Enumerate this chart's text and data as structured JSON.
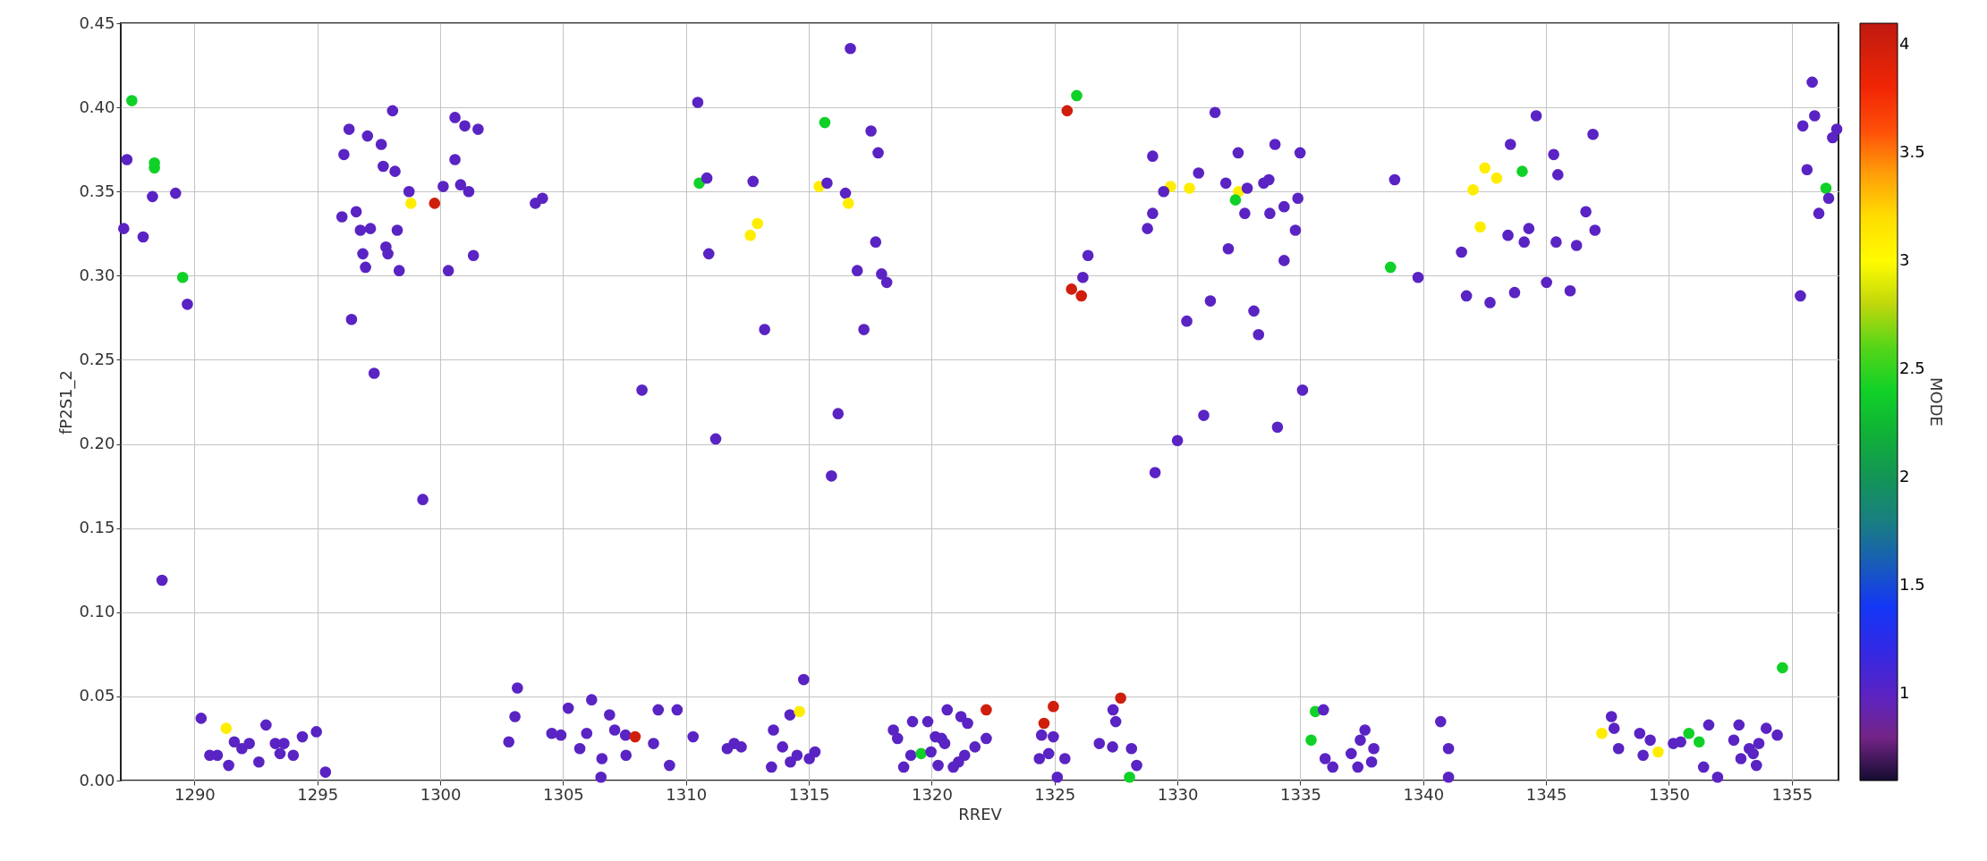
{
  "chart_data": {
    "type": "scatter",
    "xlabel": "RREV",
    "ylabel": "fP2S1_2",
    "clabel": "MODE",
    "marker": "circle",
    "grid": true,
    "xlim": [
      1287.0,
      1356.9
    ],
    "ylim": [
      0,
      0.45
    ],
    "xticks": [
      1290,
      1295,
      1300,
      1305,
      1310,
      1315,
      1320,
      1325,
      1330,
      1335,
      1340,
      1345,
      1350,
      1355
    ],
    "yticks": [
      {
        "value": 0,
        "label": "0.00"
      },
      {
        "value": 0.05,
        "label": "0.05"
      },
      {
        "value": 0.1,
        "label": "0.10"
      },
      {
        "value": 0.15,
        "label": "0.15"
      },
      {
        "value": 0.2,
        "label": "0.20"
      },
      {
        "value": 0.25,
        "label": "0.25"
      },
      {
        "value": 0.3,
        "label": "0.30"
      },
      {
        "value": 0.35,
        "label": "0.35"
      },
      {
        "value": 0.4,
        "label": "0.40"
      },
      {
        "value": 0.45,
        "label": "0.45"
      }
    ],
    "clim": [
      0.6,
      4.1
    ],
    "cticks": [
      1,
      1.5,
      2,
      2.5,
      3,
      3.5,
      4
    ],
    "x": [
      1287.45,
      1287.25,
      1288.37,
      1288.37,
      1288.29,
      1289.23,
      1287.12,
      1287.91,
      1289.52,
      1289.71,
      1288.68,
      1290.27,
      1291.29,
      1290.62,
      1290.93,
      1291.39,
      1291.62,
      1291.93,
      1292.23,
      1292.62,
      1292.91,
      1293.29,
      1293.64,
      1293.48,
      1294.02,
      1294.39,
      1294.96,
      1295.33,
      1296.0,
      1296.08,
      1296.29,
      1296.58,
      1296.75,
      1297.16,
      1296.39,
      1297.04,
      1296.85,
      1296.96,
      1297.31,
      1297.6,
      1297.68,
      1297.79,
      1297.87,
      1298.06,
      1298.16,
      1298.25,
      1298.33,
      1298.73,
      1298.81,
      1299.29,
      1299.77,
      1300.12,
      1300.33,
      1300.6,
      1300.6,
      1300.83,
      1301.0,
      1301.54,
      1301.16,
      1301.35,
      1303.87,
      1304.16,
      1310.48,
      1310.54,
      1310.85,
      1312.73,
      1312.62,
      1312.91,
      1310.93,
      1313.2,
      1308.21,
      1311.21,
      1303.14,
      1303.04,
      1302.79,
      1304.54,
      1304.91,
      1305.21,
      1306.16,
      1305.68,
      1305.96,
      1306.89,
      1306.58,
      1306.54,
      1307.1,
      1307.54,
      1307.93,
      1307.56,
      1308.68,
      1308.87,
      1309.64,
      1309.33,
      1310.29,
      1311.68,
      1311.96,
      1312.25,
      1313.56,
      1313.48,
      1313.93,
      1314.23,
      1314.62,
      1314.79,
      1314.25,
      1314.52,
      1315.02,
      1315.25,
      1316.69,
      1315.65,
      1317.53,
      1317.82,
      1315.42,
      1315.74,
      1316.49,
      1316.61,
      1317.72,
      1316.97,
      1317.96,
      1318.17,
      1317.24,
      1316.19,
      1315.92,
      1325.9,
      1325.51,
      1328.99,
      1329.72,
      1329.44,
      1328.99,
      1328.78,
      1326.36,
      1326.15,
      1325.69,
      1326.09,
      1329.09,
      1330.0,
      1318.44,
      1318.61,
      1319.22,
      1318.86,
      1319.15,
      1319.57,
      1319.84,
      1319.97,
      1320.15,
      1320.4,
      1320.53,
      1320.63,
      1320.26,
      1320.88,
      1321.09,
      1321.34,
      1321.19,
      1321.46,
      1321.76,
      1322.22,
      1322.22,
      1324.95,
      1324.57,
      1324.47,
      1324.95,
      1324.76,
      1324.38,
      1325.42,
      1325.11,
      1326.82,
      1327.36,
      1327.38,
      1327.69,
      1327.49,
      1328.13,
      1328.34,
      1328.05,
      1331.53,
      1330.86,
      1330.49,
      1332.47,
      1331.97,
      1332.49,
      1332.36,
      1332.84,
      1333.51,
      1333.72,
      1333.97,
      1334.99,
      1332.74,
      1333.76,
      1334.34,
      1334.9,
      1334.8,
      1332.07,
      1334.34,
      1331.34,
      1330.38,
      1333.11,
      1333.3,
      1335.09,
      1331.07,
      1334.07,
      1338.84,
      1338.67,
      1339.79,
      1341.56,
      1341.76,
      1342.72,
      1343.72,
      1342.03,
      1342.51,
      1342.99,
      1342.32,
      1343.55,
      1344.03,
      1343.45,
      1344.11,
      1344.3,
      1344.6,
      1335.61,
      1335.94,
      1335.44,
      1336.01,
      1336.32,
      1337.07,
      1337.34,
      1337.44,
      1337.63,
      1337.99,
      1337.9,
      1340.71,
      1341.03,
      1341.03,
      1346.91,
      1345.31,
      1345.48,
      1345.41,
      1346.24,
      1346.62,
      1346.99,
      1345.02,
      1345.98,
      1355.83,
      1355.45,
      1355.93,
      1356.66,
      1356.83,
      1355.62,
      1356.39,
      1356.5,
      1356.1,
      1355.35,
      1354.62,
      1347.66,
      1347.27,
      1347.77,
      1347.95,
      1348.81,
      1348.95,
      1349.24,
      1349.56,
      1350.18,
      1350.48,
      1350.81,
      1351.23,
      1351.41,
      1351.62,
      1351.98,
      1352.64,
      1352.85,
      1352.93,
      1353.27,
      1353.43,
      1353.66,
      1353.56,
      1353.96,
      1354.41
    ],
    "values": [
      0.404,
      0.369,
      0.367,
      0.364,
      0.347,
      0.349,
      0.328,
      0.323,
      0.299,
      0.283,
      0.119,
      0.037,
      0.031,
      0.015,
      0.015,
      0.009,
      0.023,
      0.019,
      0.022,
      0.011,
      0.033,
      0.022,
      0.022,
      0.016,
      0.015,
      0.026,
      0.029,
      0.005,
      0.335,
      0.372,
      0.387,
      0.338,
      0.327,
      0.328,
      0.274,
      0.383,
      0.313,
      0.305,
      0.242,
      0.378,
      0.365,
      0.317,
      0.313,
      0.398,
      0.362,
      0.327,
      0.303,
      0.35,
      0.343,
      0.167,
      0.343,
      0.353,
      0.303,
      0.394,
      0.369,
      0.354,
      0.389,
      0.387,
      0.35,
      0.312,
      0.343,
      0.346,
      0.403,
      0.355,
      0.358,
      0.356,
      0.324,
      0.331,
      0.313,
      0.268,
      0.232,
      0.203,
      0.055,
      0.038,
      0.023,
      0.028,
      0.027,
      0.043,
      0.048,
      0.019,
      0.028,
      0.039,
      0.013,
      0.002,
      0.03,
      0.027,
      0.026,
      0.015,
      0.022,
      0.042,
      0.042,
      0.009,
      0.026,
      0.019,
      0.022,
      0.02,
      0.03,
      0.008,
      0.02,
      0.039,
      0.041,
      0.06,
      0.011,
      0.015,
      0.013,
      0.017,
      0.435,
      0.391,
      0.386,
      0.373,
      0.353,
      0.355,
      0.349,
      0.343,
      0.32,
      0.303,
      0.301,
      0.296,
      0.268,
      0.218,
      0.181,
      0.407,
      0.398,
      0.371,
      0.353,
      0.35,
      0.337,
      0.328,
      0.312,
      0.299,
      0.292,
      0.288,
      0.183,
      0.202,
      0.03,
      0.025,
      0.035,
      0.008,
      0.015,
      0.016,
      0.035,
      0.017,
      0.026,
      0.025,
      0.022,
      0.042,
      0.009,
      0.008,
      0.011,
      0.015,
      0.038,
      0.034,
      0.02,
      0.025,
      0.042,
      0.044,
      0.034,
      0.027,
      0.026,
      0.016,
      0.013,
      0.013,
      0.002,
      0.022,
      0.02,
      0.042,
      0.049,
      0.035,
      0.019,
      0.009,
      0.002,
      0.397,
      0.361,
      0.352,
      0.373,
      0.355,
      0.35,
      0.345,
      0.352,
      0.355,
      0.357,
      0.378,
      0.373,
      0.337,
      0.337,
      0.341,
      0.346,
      0.327,
      0.316,
      0.309,
      0.285,
      0.273,
      0.279,
      0.265,
      0.232,
      0.217,
      0.21,
      0.357,
      0.305,
      0.299,
      0.314,
      0.288,
      0.284,
      0.29,
      0.351,
      0.364,
      0.358,
      0.329,
      0.378,
      0.362,
      0.324,
      0.32,
      0.328,
      0.395,
      0.041,
      0.042,
      0.024,
      0.013,
      0.008,
      0.016,
      0.008,
      0.024,
      0.03,
      0.019,
      0.011,
      0.035,
      0.019,
      0.002,
      0.384,
      0.372,
      0.36,
      0.32,
      0.318,
      0.338,
      0.327,
      0.296,
      0.291,
      0.415,
      0.389,
      0.395,
      0.382,
      0.387,
      0.363,
      0.352,
      0.346,
      0.337,
      0.288,
      0.067,
      0.038,
      0.028,
      0.031,
      0.019,
      0.028,
      0.015,
      0.024,
      0.017,
      0.022,
      0.023,
      0.028,
      0.023,
      0.008,
      0.033,
      0.002,
      0.024,
      0.033,
      0.013,
      0.019,
      0.016,
      0.022,
      0.009,
      0.031,
      0.027
    ],
    "cvalues": [
      2.4,
      1,
      2.4,
      2.4,
      1,
      1,
      1,
      1,
      2.4,
      1,
      1,
      1,
      3.1,
      1,
      1,
      1,
      1,
      1,
      1,
      1,
      1,
      1,
      1,
      1,
      1,
      1,
      1,
      1,
      1,
      1,
      1,
      1,
      1,
      1,
      1,
      1,
      1,
      1,
      1,
      1,
      1,
      1,
      1,
      1,
      1,
      1,
      1,
      1,
      3.1,
      1,
      4,
      1,
      1,
      1,
      1,
      1,
      1,
      1,
      1,
      1,
      1,
      1,
      1,
      2.4,
      1,
      1,
      3.1,
      3.1,
      1,
      1,
      1,
      1,
      1,
      1,
      1,
      1,
      1,
      1,
      1,
      1,
      1,
      1,
      1,
      1,
      1,
      1,
      4,
      1,
      1,
      1,
      1,
      1,
      1,
      1,
      1,
      1,
      1,
      1,
      1,
      1,
      3.1,
      1,
      1,
      1,
      1,
      1,
      1,
      2.4,
      1,
      1,
      3.1,
      1,
      1,
      3.1,
      1,
      1,
      1,
      1,
      1,
      1,
      1,
      2.4,
      4,
      1,
      3.1,
      1,
      1,
      1,
      1,
      1,
      4,
      4,
      1,
      1,
      1,
      1,
      1,
      1,
      1,
      2.4,
      1,
      1,
      1,
      1,
      1,
      1,
      1,
      1,
      1,
      1,
      1,
      1,
      1,
      1,
      4,
      4,
      4,
      1,
      1,
      1,
      1,
      1,
      1,
      1,
      1,
      1,
      4,
      1,
      1,
      1,
      2.4,
      1,
      1,
      3.1,
      1,
      1,
      3.1,
      2.4,
      1,
      1,
      1,
      1,
      1,
      1,
      1,
      1,
      1,
      1,
      1,
      1,
      1,
      1,
      1,
      1,
      1,
      1,
      1,
      1,
      2.4,
      1,
      1,
      1,
      1,
      1,
      3.1,
      3.1,
      3.1,
      3.1,
      1,
      2.4,
      1,
      1,
      1,
      1,
      2.4,
      1,
      2.4,
      1,
      1,
      1,
      1,
      1,
      1,
      1,
      1,
      1,
      1,
      1,
      1,
      1,
      1,
      1,
      1,
      1,
      1,
      1,
      1,
      1,
      1,
      1,
      1,
      1,
      1,
      2.4,
      1,
      1,
      1,
      2.4,
      1,
      3.1,
      1,
      1,
      1,
      1,
      1,
      3.1,
      1,
      1,
      2.4,
      2.4,
      1,
      1,
      1,
      1,
      1,
      1,
      1,
      1,
      1,
      1,
      1,
      1
    ]
  }
}
